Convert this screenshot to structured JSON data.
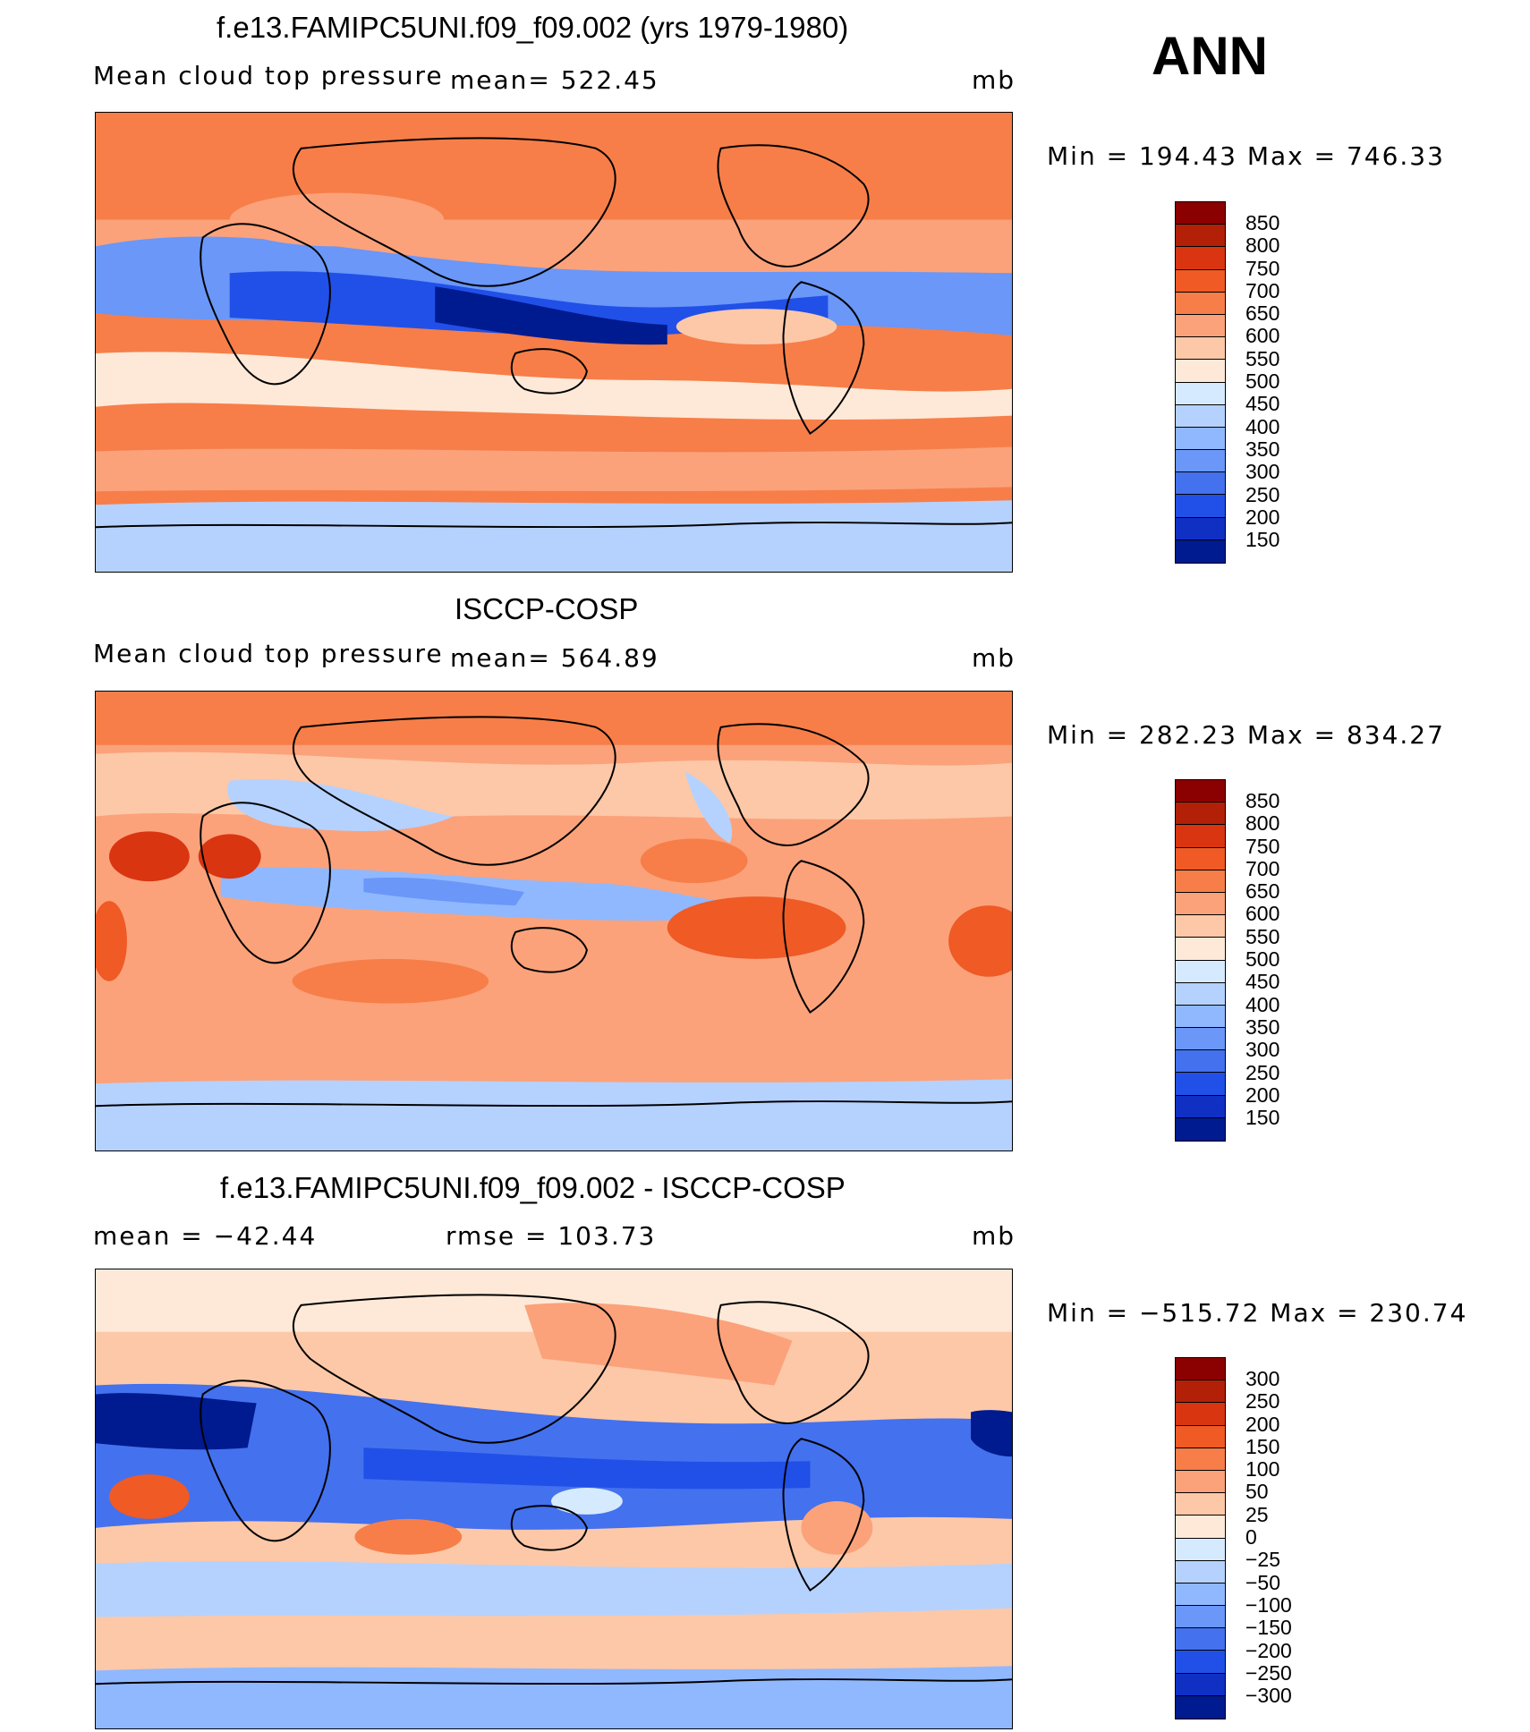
{
  "season": "ANN",
  "chart_data": [
    {
      "type": "heatmap",
      "title": "f.e13.FAMIPC5UNI.f09_f09.002 (yrs 1979-1980)",
      "left_label": "Mean cloud top pressure",
      "center_label": "mean= 522.45",
      "units": "mb",
      "min_max": "Min = 194.43 Max = 746.33",
      "colorbar": {
        "colors": [
          "#8b0000",
          "#b22008",
          "#d93510",
          "#ef5a25",
          "#f77e48",
          "#fba27b",
          "#fcc8a8",
          "#fee9d8",
          "#d6eaff",
          "#b5d2ff",
          "#90b8ff",
          "#6a97f8",
          "#4471ee",
          "#2150e8",
          "#1030c4",
          "#001a8f"
        ],
        "tick_labels": [
          "850",
          "800",
          "750",
          "700",
          "650",
          "600",
          "550",
          "500",
          "450",
          "400",
          "350",
          "300",
          "250",
          "200",
          "150"
        ]
      }
    },
    {
      "type": "heatmap",
      "title": "ISCCP-COSP",
      "left_label": "Mean cloud top pressure",
      "center_label": "mean= 564.89",
      "units": "mb",
      "min_max": "Min = 282.23 Max = 834.27",
      "colorbar": {
        "colors": [
          "#8b0000",
          "#b22008",
          "#d93510",
          "#ef5a25",
          "#f77e48",
          "#fba27b",
          "#fcc8a8",
          "#fee9d8",
          "#d6eaff",
          "#b5d2ff",
          "#90b8ff",
          "#6a97f8",
          "#4471ee",
          "#2150e8",
          "#1030c4",
          "#001a8f"
        ],
        "tick_labels": [
          "850",
          "800",
          "750",
          "700",
          "650",
          "600",
          "550",
          "500",
          "450",
          "400",
          "350",
          "300",
          "250",
          "200",
          "150"
        ]
      }
    },
    {
      "type": "heatmap",
      "title": "f.e13.FAMIPC5UNI.f09_f09.002 - ISCCP-COSP",
      "left_label": "mean = −42.44",
      "center_label": "rmse = 103.73",
      "units": "mb",
      "min_max": "Min = −515.72 Max = 230.74",
      "colorbar": {
        "colors": [
          "#8b0000",
          "#b22008",
          "#d93510",
          "#ef5a25",
          "#f77e48",
          "#fba27b",
          "#fcc8a8",
          "#fee9d8",
          "#d6eaff",
          "#b5d2ff",
          "#90b8ff",
          "#6a97f8",
          "#4471ee",
          "#2150e8",
          "#1030c4",
          "#001a8f"
        ],
        "tick_labels": [
          "300",
          "250",
          "200",
          "150",
          "100",
          "50",
          "25",
          "0",
          "−25",
          "−50",
          "−100",
          "−150",
          "−200",
          "−250",
          "−300"
        ]
      }
    }
  ]
}
